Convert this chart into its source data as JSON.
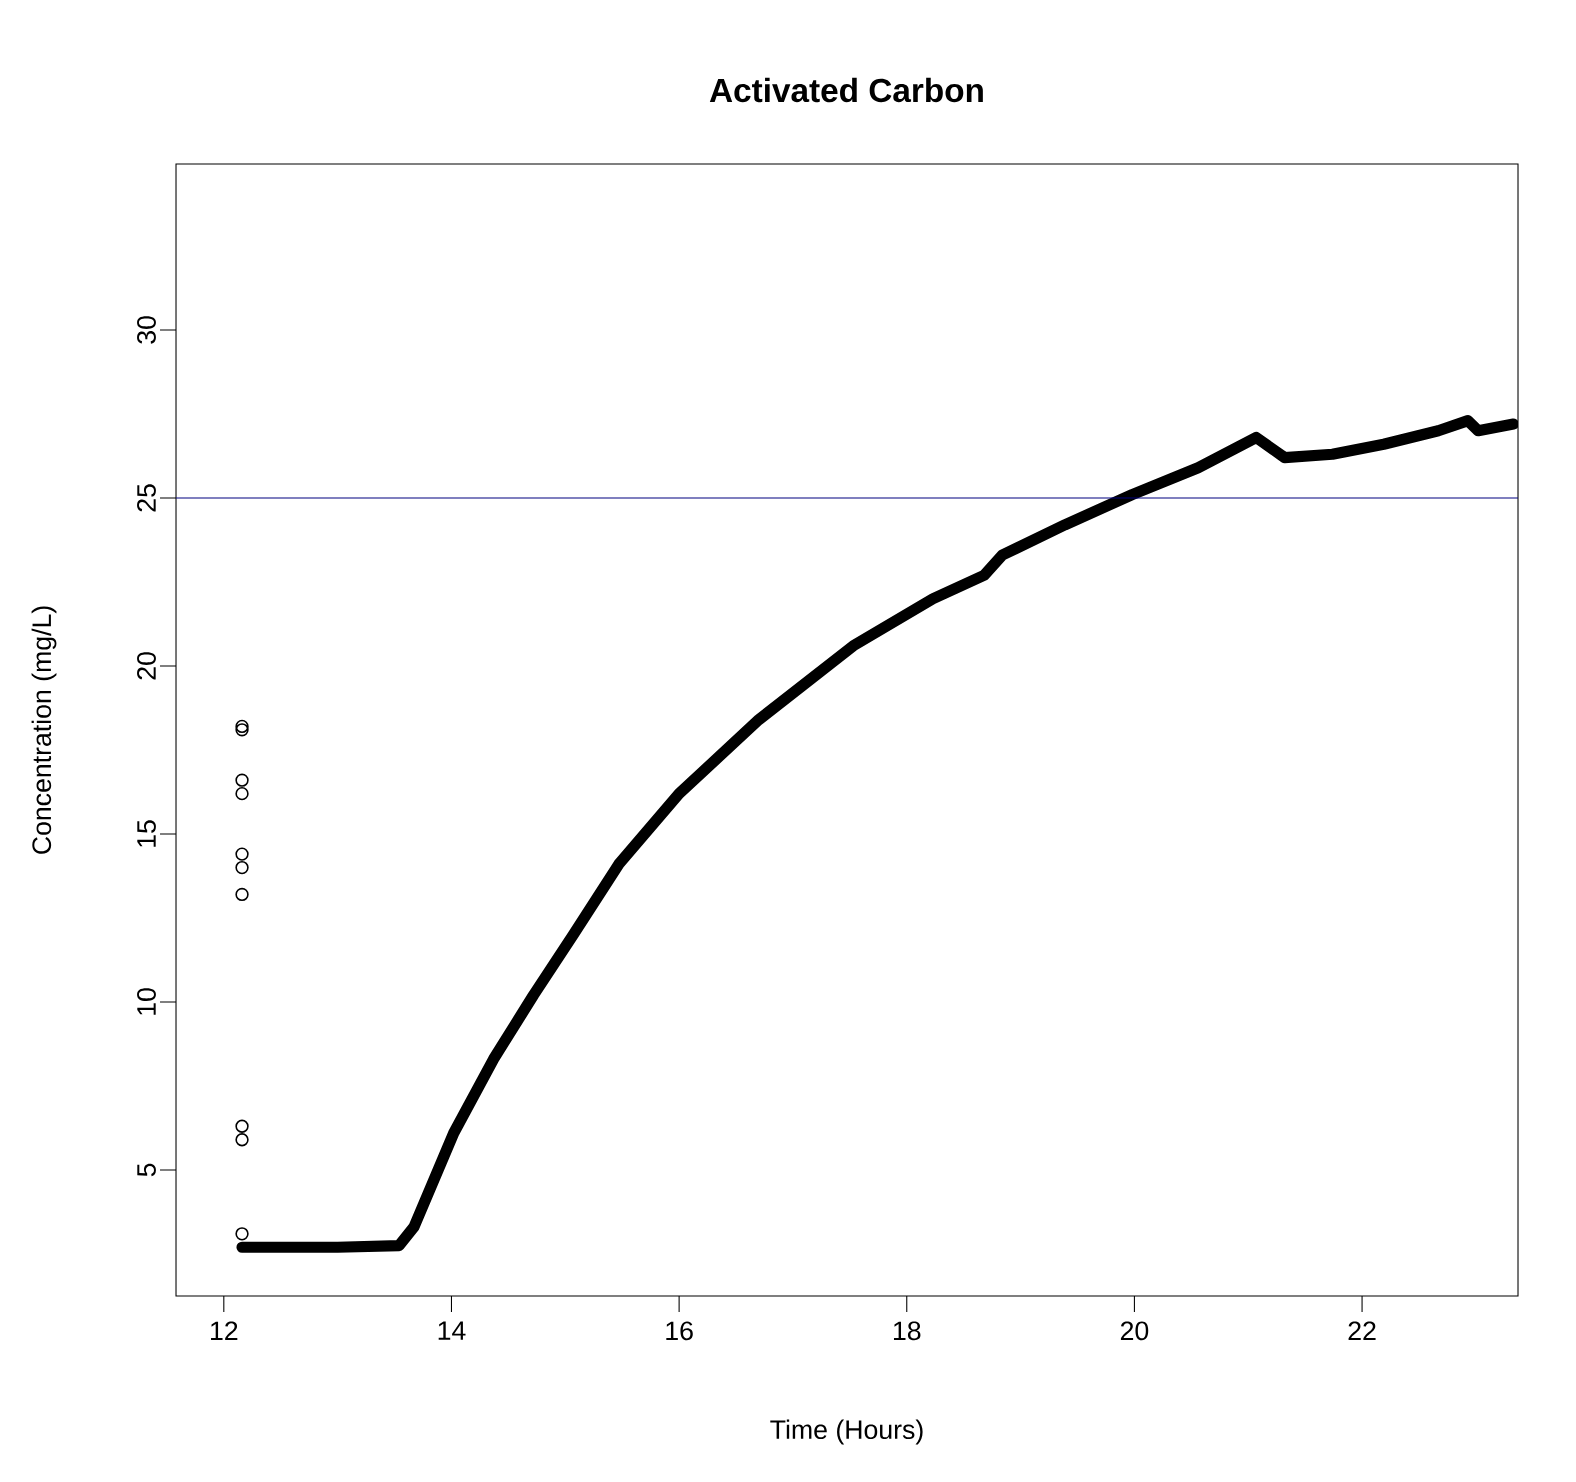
{
  "chart_data": {
    "type": "line",
    "title": "Activated Carbon",
    "xlabel": "Time (Hours)",
    "ylabel": "Concentration (mg/L)",
    "xlim": [
      11.58,
      23.37
    ],
    "ylim": [
      1.25,
      34.94
    ],
    "xticks": [
      12,
      14,
      16,
      18,
      20,
      22
    ],
    "yticks": [
      5,
      10,
      15,
      20,
      25,
      30
    ],
    "series": [
      {
        "type": "scatter",
        "color": "#000000",
        "marker": "circle",
        "x": [
          12.16,
          12.16,
          12.16,
          12.16,
          12.16,
          12.16,
          12.16,
          12.16,
          12.16,
          12.16
        ],
        "values": [
          18.2,
          18.1,
          16.6,
          16.2,
          14.4,
          14.0,
          13.2,
          6.3,
          5.9,
          3.1
        ]
      },
      {
        "color": "#000000",
        "marker": "none",
        "line_style": "solid",
        "x": [
          12.16,
          13.0,
          13.54,
          13.67,
          14.02,
          14.37,
          14.72,
          15.07,
          15.47,
          16.0,
          16.7,
          17.53,
          18.23,
          18.68,
          18.84,
          19.39,
          19.98,
          20.56,
          21.07,
          21.32,
          21.74,
          22.19,
          22.67,
          22.93,
          23.02,
          23.33
        ],
        "values": [
          2.7,
          2.7,
          2.75,
          3.3,
          6.1,
          8.3,
          10.2,
          12.0,
          14.1,
          16.2,
          18.4,
          20.6,
          22.0,
          22.7,
          23.3,
          24.2,
          25.1,
          25.9,
          26.8,
          26.2,
          26.3,
          26.6,
          27.0,
          27.3,
          27.0,
          27.2
        ]
      }
    ],
    "ref_lines": [
      {
        "axis": "y",
        "value": 25,
        "color": "#000080"
      }
    ],
    "grid": false
  }
}
